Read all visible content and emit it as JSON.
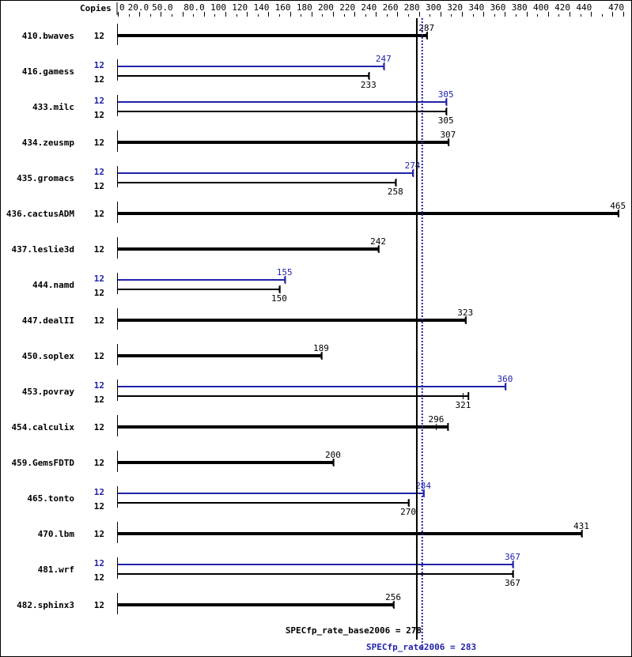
{
  "chart_data": {
    "type": "bar",
    "orientation": "horizontal",
    "copies_header": "Copies",
    "xlim": [
      0,
      470
    ],
    "x_tick_labels": [
      "0",
      "20.0",
      "50.0",
      "80.0",
      "100",
      "120",
      "140",
      "160",
      "180",
      "200",
      "220",
      "240",
      "260",
      "280",
      "300",
      "320",
      "340",
      "360",
      "380",
      "400",
      "420",
      "440",
      "470"
    ],
    "x_tick_label_values": [
      0,
      20,
      50,
      80,
      100,
      120,
      140,
      160,
      180,
      200,
      220,
      240,
      260,
      280,
      300,
      320,
      340,
      360,
      380,
      400,
      420,
      440,
      470
    ],
    "colors": {
      "base": "#000000",
      "peak": "#2222aa"
    },
    "benchmarks": [
      {
        "name": "410.bwaves",
        "base": {
          "copies": "12",
          "value": 287
        }
      },
      {
        "name": "416.gamess",
        "peak": {
          "copies": "12",
          "value": 247
        },
        "base": {
          "copies": "12",
          "value": 233
        }
      },
      {
        "name": "433.milc",
        "peak": {
          "copies": "12",
          "value": 305
        },
        "base": {
          "copies": "12",
          "value": 305
        }
      },
      {
        "name": "434.zeusmp",
        "base": {
          "copies": "12",
          "value": 307
        }
      },
      {
        "name": "435.gromacs",
        "peak": {
          "copies": "12",
          "value": 274
        },
        "base": {
          "copies": "12",
          "value": 258
        }
      },
      {
        "name": "436.cactusADM",
        "base": {
          "copies": "12",
          "value": 465
        }
      },
      {
        "name": "437.leslie3d",
        "base": {
          "copies": "12",
          "value": 242
        }
      },
      {
        "name": "444.namd",
        "peak": {
          "copies": "12",
          "value": 155
        },
        "base": {
          "copies": "12",
          "value": 150
        }
      },
      {
        "name": "447.dealII",
        "base": {
          "copies": "12",
          "value": 323
        }
      },
      {
        "name": "450.soplex",
        "base": {
          "copies": "12",
          "value": 189
        }
      },
      {
        "name": "453.povray",
        "peak": {
          "copies": "12",
          "value": 360
        },
        "base": {
          "copies": "12",
          "value": 321,
          "max": 326
        }
      },
      {
        "name": "454.calculix",
        "base": {
          "copies": "12",
          "value": 296,
          "max": 307
        }
      },
      {
        "name": "459.GemsFDTD",
        "base": {
          "copies": "12",
          "value": 200
        }
      },
      {
        "name": "465.tonto",
        "peak": {
          "copies": "12",
          "value": 284
        },
        "base": {
          "copies": "12",
          "value": 270
        }
      },
      {
        "name": "470.lbm",
        "base": {
          "copies": "12",
          "value": 431
        }
      },
      {
        "name": "481.wrf",
        "peak": {
          "copies": "12",
          "value": 367
        },
        "base": {
          "copies": "12",
          "value": 367
        }
      },
      {
        "name": "482.sphinx3",
        "base": {
          "copies": "12",
          "value": 256
        }
      }
    ],
    "reference_lines": {
      "base": {
        "label": "SPECfp_rate_base2006 = 278",
        "value": 278
      },
      "peak": {
        "label": "SPECfp_rate2006 = 283",
        "value": 283
      }
    }
  }
}
